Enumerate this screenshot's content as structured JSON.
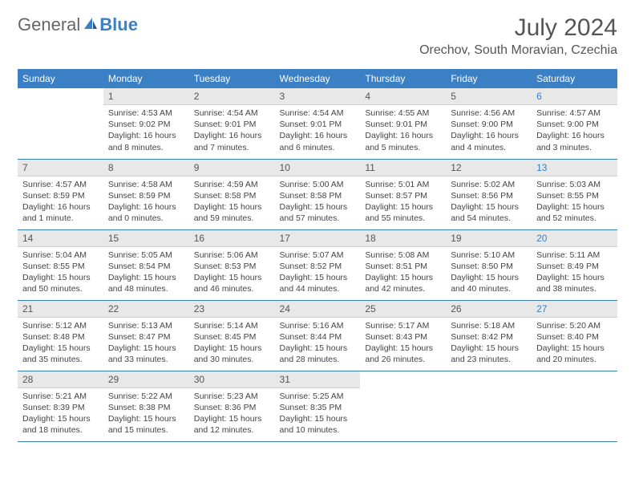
{
  "logo": {
    "text1": "General",
    "text2": "Blue"
  },
  "title": "July 2024",
  "location": "Orechov, South Moravian, Czechia",
  "colors": {
    "accent": "#3b7fc4",
    "header_bg": "#3b7fc4",
    "daynum_bg": "#e8e8e8",
    "text": "#444444",
    "title_text": "#555555"
  },
  "weekdays": [
    "Sunday",
    "Monday",
    "Tuesday",
    "Wednesday",
    "Thursday",
    "Friday",
    "Saturday"
  ],
  "weeks": [
    [
      null,
      {
        "n": "1",
        "sr": "4:53 AM",
        "ss": "9:02 PM",
        "dl": "16 hours and 8 minutes."
      },
      {
        "n": "2",
        "sr": "4:54 AM",
        "ss": "9:01 PM",
        "dl": "16 hours and 7 minutes."
      },
      {
        "n": "3",
        "sr": "4:54 AM",
        "ss": "9:01 PM",
        "dl": "16 hours and 6 minutes."
      },
      {
        "n": "4",
        "sr": "4:55 AM",
        "ss": "9:01 PM",
        "dl": "16 hours and 5 minutes."
      },
      {
        "n": "5",
        "sr": "4:56 AM",
        "ss": "9:00 PM",
        "dl": "16 hours and 4 minutes."
      },
      {
        "n": "6",
        "sr": "4:57 AM",
        "ss": "9:00 PM",
        "dl": "16 hours and 3 minutes."
      }
    ],
    [
      {
        "n": "7",
        "sr": "4:57 AM",
        "ss": "8:59 PM",
        "dl": "16 hours and 1 minute."
      },
      {
        "n": "8",
        "sr": "4:58 AM",
        "ss": "8:59 PM",
        "dl": "16 hours and 0 minutes."
      },
      {
        "n": "9",
        "sr": "4:59 AM",
        "ss": "8:58 PM",
        "dl": "15 hours and 59 minutes."
      },
      {
        "n": "10",
        "sr": "5:00 AM",
        "ss": "8:58 PM",
        "dl": "15 hours and 57 minutes."
      },
      {
        "n": "11",
        "sr": "5:01 AM",
        "ss": "8:57 PM",
        "dl": "15 hours and 55 minutes."
      },
      {
        "n": "12",
        "sr": "5:02 AM",
        "ss": "8:56 PM",
        "dl": "15 hours and 54 minutes."
      },
      {
        "n": "13",
        "sr": "5:03 AM",
        "ss": "8:55 PM",
        "dl": "15 hours and 52 minutes."
      }
    ],
    [
      {
        "n": "14",
        "sr": "5:04 AM",
        "ss": "8:55 PM",
        "dl": "15 hours and 50 minutes."
      },
      {
        "n": "15",
        "sr": "5:05 AM",
        "ss": "8:54 PM",
        "dl": "15 hours and 48 minutes."
      },
      {
        "n": "16",
        "sr": "5:06 AM",
        "ss": "8:53 PM",
        "dl": "15 hours and 46 minutes."
      },
      {
        "n": "17",
        "sr": "5:07 AM",
        "ss": "8:52 PM",
        "dl": "15 hours and 44 minutes."
      },
      {
        "n": "18",
        "sr": "5:08 AM",
        "ss": "8:51 PM",
        "dl": "15 hours and 42 minutes."
      },
      {
        "n": "19",
        "sr": "5:10 AM",
        "ss": "8:50 PM",
        "dl": "15 hours and 40 minutes."
      },
      {
        "n": "20",
        "sr": "5:11 AM",
        "ss": "8:49 PM",
        "dl": "15 hours and 38 minutes."
      }
    ],
    [
      {
        "n": "21",
        "sr": "5:12 AM",
        "ss": "8:48 PM",
        "dl": "15 hours and 35 minutes."
      },
      {
        "n": "22",
        "sr": "5:13 AM",
        "ss": "8:47 PM",
        "dl": "15 hours and 33 minutes."
      },
      {
        "n": "23",
        "sr": "5:14 AM",
        "ss": "8:45 PM",
        "dl": "15 hours and 30 minutes."
      },
      {
        "n": "24",
        "sr": "5:16 AM",
        "ss": "8:44 PM",
        "dl": "15 hours and 28 minutes."
      },
      {
        "n": "25",
        "sr": "5:17 AM",
        "ss": "8:43 PM",
        "dl": "15 hours and 26 minutes."
      },
      {
        "n": "26",
        "sr": "5:18 AM",
        "ss": "8:42 PM",
        "dl": "15 hours and 23 minutes."
      },
      {
        "n": "27",
        "sr": "5:20 AM",
        "ss": "8:40 PM",
        "dl": "15 hours and 20 minutes."
      }
    ],
    [
      {
        "n": "28",
        "sr": "5:21 AM",
        "ss": "8:39 PM",
        "dl": "15 hours and 18 minutes."
      },
      {
        "n": "29",
        "sr": "5:22 AM",
        "ss": "8:38 PM",
        "dl": "15 hours and 15 minutes."
      },
      {
        "n": "30",
        "sr": "5:23 AM",
        "ss": "8:36 PM",
        "dl": "15 hours and 12 minutes."
      },
      {
        "n": "31",
        "sr": "5:25 AM",
        "ss": "8:35 PM",
        "dl": "15 hours and 10 minutes."
      },
      null,
      null,
      null
    ]
  ],
  "labels": {
    "sunrise": "Sunrise:",
    "sunset": "Sunset:",
    "daylight": "Daylight:"
  }
}
